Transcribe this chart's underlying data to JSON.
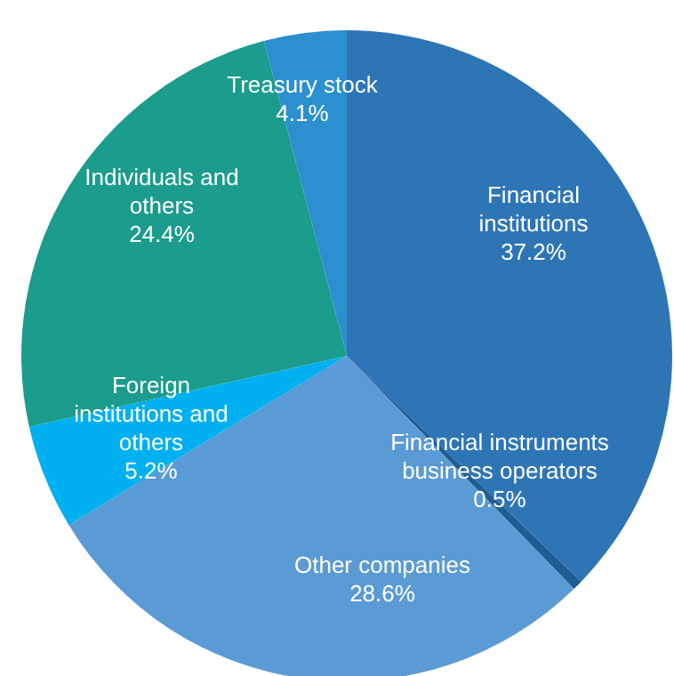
{
  "chart_data": {
    "type": "pie",
    "categories": [
      "Financial institutions",
      "Financial instruments business operators",
      "Other companies",
      "Foreign institutions and others",
      "Individuals and others",
      "Treasury stock"
    ],
    "values": [
      37.2,
      0.5,
      28.6,
      5.2,
      24.4,
      4.1
    ],
    "value_labels": [
      "37.2%",
      "0.5%",
      "28.6%",
      "5.2%",
      "24.4%",
      "4.1%"
    ],
    "colors": [
      "#2e75b6",
      "#1f5c94",
      "#5b9bd5",
      "#00b0f0",
      "#1b9c8c",
      "#2b8fd0"
    ],
    "legend": false
  }
}
